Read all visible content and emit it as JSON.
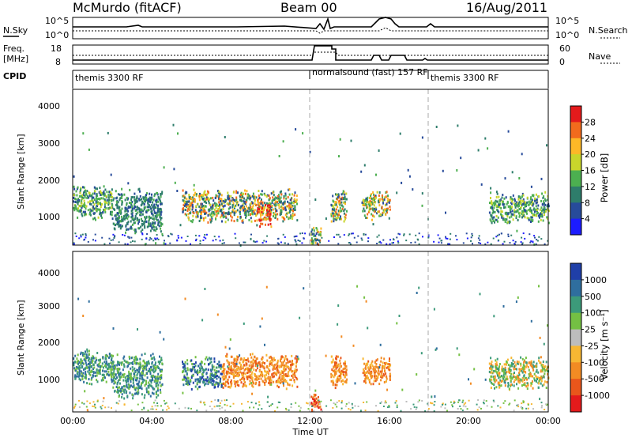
{
  "header": {
    "station": "McMurdo (fitACF)",
    "beam": "Beam 00",
    "date": "16/Aug/2011"
  },
  "noise_panel": {
    "left_label": "N.Sky",
    "right_label": "N.Search",
    "left_ticks": [
      "10^5",
      "10^0"
    ],
    "right_ticks": [
      "10^5",
      "10^0"
    ]
  },
  "freq_panel": {
    "left_label_line1": "Freq.",
    "left_label_line2": "[MHz]",
    "right_label": "Nave",
    "left_ticks": [
      "18",
      "8"
    ],
    "right_ticks": [
      "60",
      "0"
    ]
  },
  "cpid_panel": {
    "label": "CPID",
    "segments": [
      {
        "label": "themis 3300 RF",
        "start_hour": 0,
        "end_hour": 12
      },
      {
        "label": "normalsound (fast) 157 RF",
        "start_hour": 12,
        "end_hour": 18
      },
      {
        "label": "themis 3300 RF",
        "start_hour": 18,
        "end_hour": 24
      }
    ]
  },
  "power_colorbar": {
    "label": "Power [dB]",
    "ticks": [
      "28",
      "24",
      "20",
      "16",
      "12",
      "8",
      "4"
    ],
    "colors": [
      "#e41a1c",
      "#f26b1d",
      "#fdb827",
      "#c9d62b",
      "#4caf50",
      "#2e7d6b",
      "#274b9b",
      "#1c1cff"
    ]
  },
  "velocity_colorbar": {
    "label": "Velocity [m s⁻¹]",
    "ticks": [
      "1000",
      "500",
      "100",
      "25",
      "-25",
      "-100",
      "-500",
      "-1000"
    ],
    "colors": [
      "#1f3fa8",
      "#2f6e9e",
      "#3c9a7a",
      "#74c043",
      "#bdbdbd",
      "#f7b733",
      "#f28b23",
      "#e9561b",
      "#e41a1c"
    ]
  },
  "axes": {
    "ylabel": "Slant Range [km]",
    "xlabel": "Time UT",
    "x_ticks": [
      "00:00",
      "04:00",
      "08:00",
      "12:00",
      "16:00",
      "20:00",
      "00:00"
    ],
    "y_ticks": [
      "4000",
      "3000",
      "2000",
      "1000"
    ]
  },
  "chart_data": [
    {
      "type": "heatmap",
      "title": "",
      "xlabel": "Time UT",
      "ylabel": "Slant Range [km]",
      "colorbar_label": "Power [dB]",
      "xlim": [
        0,
        24
      ],
      "ylim": [
        180,
        4500
      ],
      "grid": false,
      "echo_regions": [
        {
          "t_start": 0.0,
          "t_end": 2.0,
          "range_start": 900,
          "range_end": 1900,
          "level": "medium"
        },
        {
          "t_start": 2.0,
          "t_end": 4.5,
          "range_start": 500,
          "range_end": 1800,
          "level": "low-medium"
        },
        {
          "t_start": 5.5,
          "t_end": 11.3,
          "range_start": 800,
          "range_end": 1800,
          "level": "high"
        },
        {
          "t_start": 9.3,
          "t_end": 10.0,
          "range_start": 700,
          "range_end": 1400,
          "level": "very high"
        },
        {
          "t_start": 12.0,
          "t_end": 12.5,
          "range_start": 200,
          "range_end": 700,
          "level": "high"
        },
        {
          "t_start": 13.0,
          "t_end": 13.8,
          "range_start": 800,
          "range_end": 1800,
          "level": "high"
        },
        {
          "t_start": 14.6,
          "t_end": 16.0,
          "range_start": 900,
          "range_end": 1700,
          "level": "high"
        },
        {
          "t_start": 21.0,
          "t_end": 24.0,
          "range_start": 800,
          "range_end": 1700,
          "level": "medium"
        }
      ]
    },
    {
      "type": "heatmap",
      "title": "",
      "xlabel": "Time UT",
      "ylabel": "Slant Range [km]",
      "colorbar_label": "Velocity [m s⁻¹]",
      "xlim": [
        0,
        24
      ],
      "ylim": [
        180,
        4500
      ],
      "grid": false,
      "echo_regions": [
        {
          "t_start": 0.0,
          "t_end": 2.0,
          "range_start": 900,
          "range_end": 1900,
          "velocity": "100 to 500"
        },
        {
          "t_start": 2.0,
          "t_end": 4.5,
          "range_start": 500,
          "range_end": 1800,
          "velocity": "25 to 500"
        },
        {
          "t_start": 5.5,
          "t_end": 7.5,
          "range_start": 800,
          "range_end": 1700,
          "velocity": "100 to 1000"
        },
        {
          "t_start": 7.5,
          "t_end": 11.3,
          "range_start": 800,
          "range_end": 1800,
          "velocity": "-100 to -500"
        },
        {
          "t_start": 12.0,
          "t_end": 12.5,
          "range_start": 200,
          "range_end": 700,
          "velocity": "-500 to -1000"
        },
        {
          "t_start": 13.0,
          "t_end": 13.8,
          "range_start": 800,
          "range_end": 1800,
          "velocity": "-100 to -500"
        },
        {
          "t_start": 14.6,
          "t_end": 16.0,
          "range_start": 900,
          "range_end": 1700,
          "velocity": "-100 to -500"
        },
        {
          "t_start": 21.0,
          "t_end": 24.0,
          "range_start": 800,
          "range_end": 1700,
          "velocity": "-100 to 100"
        }
      ]
    }
  ]
}
